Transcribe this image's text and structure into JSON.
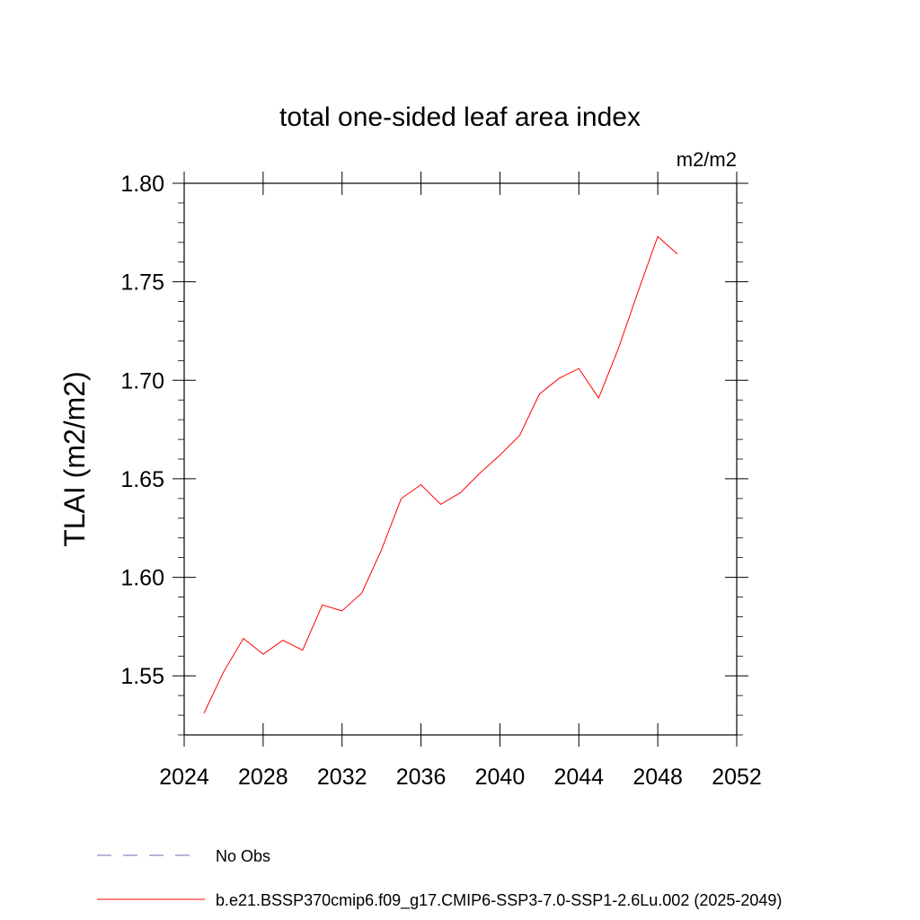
{
  "chart_data": {
    "type": "line",
    "title": "total one-sided leaf area index",
    "units": "m2/m2",
    "xlabel": "",
    "ylabel": "TLAI  (m2/m2)",
    "xlim": [
      2024,
      2052
    ],
    "ylim": [
      1.52,
      1.8
    ],
    "x_ticks": [
      2024,
      2028,
      2032,
      2036,
      2040,
      2044,
      2048,
      2052
    ],
    "x_tick_labels": [
      "2024",
      "2028",
      "2032",
      "2036",
      "2040",
      "2044",
      "2048",
      "2052"
    ],
    "y_ticks": [
      1.55,
      1.6,
      1.65,
      1.7,
      1.75,
      1.8
    ],
    "y_tick_labels": [
      "1.55",
      "1.60",
      "1.65",
      "1.70",
      "1.75",
      "1.80"
    ],
    "grid": false,
    "legend_position": "bottom",
    "series": [
      {
        "name": "b.e21.BSSP370cmip6.f09_g17.CMIP6-SSP3-7.0-SSP1-2.6Lu.002 (2025-2049)",
        "color": "#ff0000",
        "dash": "solid",
        "x": [
          2025,
          2026,
          2027,
          2028,
          2029,
          2030,
          2031,
          2032,
          2033,
          2034,
          2035,
          2036,
          2037,
          2038,
          2039,
          2040,
          2041,
          2042,
          2043,
          2044,
          2045,
          2046,
          2047,
          2048,
          2049
        ],
        "values": [
          1.531,
          1.552,
          1.569,
          1.561,
          1.568,
          1.563,
          1.586,
          1.583,
          1.592,
          1.614,
          1.64,
          1.647,
          1.637,
          1.643,
          1.653,
          1.662,
          1.672,
          1.693,
          1.701,
          1.706,
          1.691,
          1.716,
          1.745,
          1.773,
          1.764
        ]
      }
    ],
    "legend": [
      {
        "label": "No Obs",
        "color": "#7a6bb5",
        "dash": "dashed"
      },
      {
        "label": "b.e21.BSSP370cmip6.f09_g17.CMIP6-SSP3-7.0-SSP1-2.6Lu.002 (2025-2049)",
        "color": "#ff0000",
        "dash": "solid"
      }
    ]
  }
}
